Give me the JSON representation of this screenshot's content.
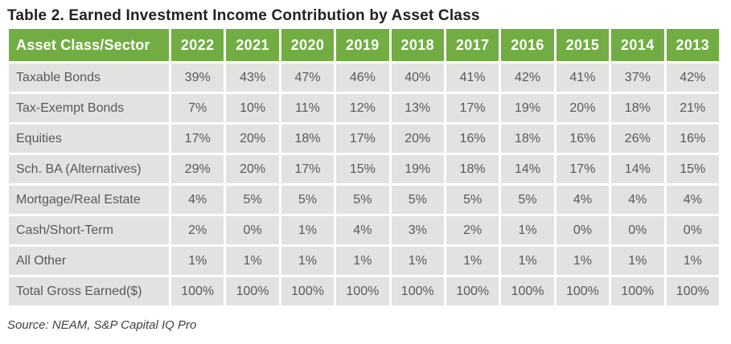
{
  "title": "Table 2. Earned Investment Income Contribution by Asset Class",
  "source": "Source: NEAM, S&P Capital IQ Pro",
  "table": {
    "corner_header": "Asset Class/Sector",
    "years": [
      "2022",
      "2021",
      "2020",
      "2019",
      "2018",
      "2017",
      "2016",
      "2015",
      "2014",
      "2013"
    ],
    "rows": [
      {
        "label": "Taxable Bonds",
        "values": [
          "39%",
          "43%",
          "47%",
          "46%",
          "40%",
          "41%",
          "42%",
          "41%",
          "37%",
          "42%"
        ]
      },
      {
        "label": "Tax-Exempt Bonds",
        "values": [
          "7%",
          "10%",
          "11%",
          "12%",
          "13%",
          "17%",
          "19%",
          "20%",
          "18%",
          "21%"
        ]
      },
      {
        "label": "Equities",
        "values": [
          "17%",
          "20%",
          "18%",
          "17%",
          "20%",
          "16%",
          "18%",
          "16%",
          "26%",
          "16%"
        ]
      },
      {
        "label": "Sch. BA (Alternatives)",
        "values": [
          "29%",
          "20%",
          "17%",
          "15%",
          "19%",
          "18%",
          "14%",
          "17%",
          "14%",
          "15%"
        ]
      },
      {
        "label": "Mortgage/Real Estate",
        "values": [
          "4%",
          "5%",
          "5%",
          "5%",
          "5%",
          "5%",
          "5%",
          "4%",
          "4%",
          "4%"
        ]
      },
      {
        "label": "Cash/Short-Term",
        "values": [
          "2%",
          "0%",
          "1%",
          "4%",
          "3%",
          "2%",
          "1%",
          "0%",
          "0%",
          "0%"
        ]
      },
      {
        "label": "All Other",
        "values": [
          "1%",
          "1%",
          "1%",
          "1%",
          "1%",
          "1%",
          "1%",
          "1%",
          "1%",
          "1%"
        ]
      },
      {
        "label": "Total Gross Earned($)",
        "values": [
          "100%",
          "100%",
          "100%",
          "100%",
          "100%",
          "100%",
          "100%",
          "100%",
          "100%",
          "100%"
        ]
      }
    ]
  },
  "chart_data": {
    "type": "table",
    "title": "Table 2. Earned Investment Income Contribution by Asset Class",
    "units": "percent of total gross earned investment income",
    "categories": [
      "2022",
      "2021",
      "2020",
      "2019",
      "2018",
      "2017",
      "2016",
      "2015",
      "2014",
      "2013"
    ],
    "series": [
      {
        "name": "Taxable Bonds",
        "values": [
          39,
          43,
          47,
          46,
          40,
          41,
          42,
          41,
          37,
          42
        ]
      },
      {
        "name": "Tax-Exempt Bonds",
        "values": [
          7,
          10,
          11,
          12,
          13,
          17,
          19,
          20,
          18,
          21
        ]
      },
      {
        "name": "Equities",
        "values": [
          17,
          20,
          18,
          17,
          20,
          16,
          18,
          16,
          26,
          16
        ]
      },
      {
        "name": "Sch. BA (Alternatives)",
        "values": [
          29,
          20,
          17,
          15,
          19,
          18,
          14,
          17,
          14,
          15
        ]
      },
      {
        "name": "Mortgage/Real Estate",
        "values": [
          4,
          5,
          5,
          5,
          5,
          5,
          5,
          4,
          4,
          4
        ]
      },
      {
        "name": "Cash/Short-Term",
        "values": [
          2,
          0,
          1,
          4,
          3,
          2,
          1,
          0,
          0,
          0
        ]
      },
      {
        "name": "All Other",
        "values": [
          1,
          1,
          1,
          1,
          1,
          1,
          1,
          1,
          1,
          1
        ]
      },
      {
        "name": "Total Gross Earned($)",
        "values": [
          100,
          100,
          100,
          100,
          100,
          100,
          100,
          100,
          100,
          100
        ]
      }
    ],
    "source": "Source: NEAM, S&P Capital IQ Pro"
  },
  "colors": {
    "header_green": "#72ad43",
    "header_text": "#ffffff",
    "cell_gray": "#e2e2e1",
    "cell_text": "#58595b",
    "title_text": "#231f20",
    "separator": "#ffffff"
  }
}
